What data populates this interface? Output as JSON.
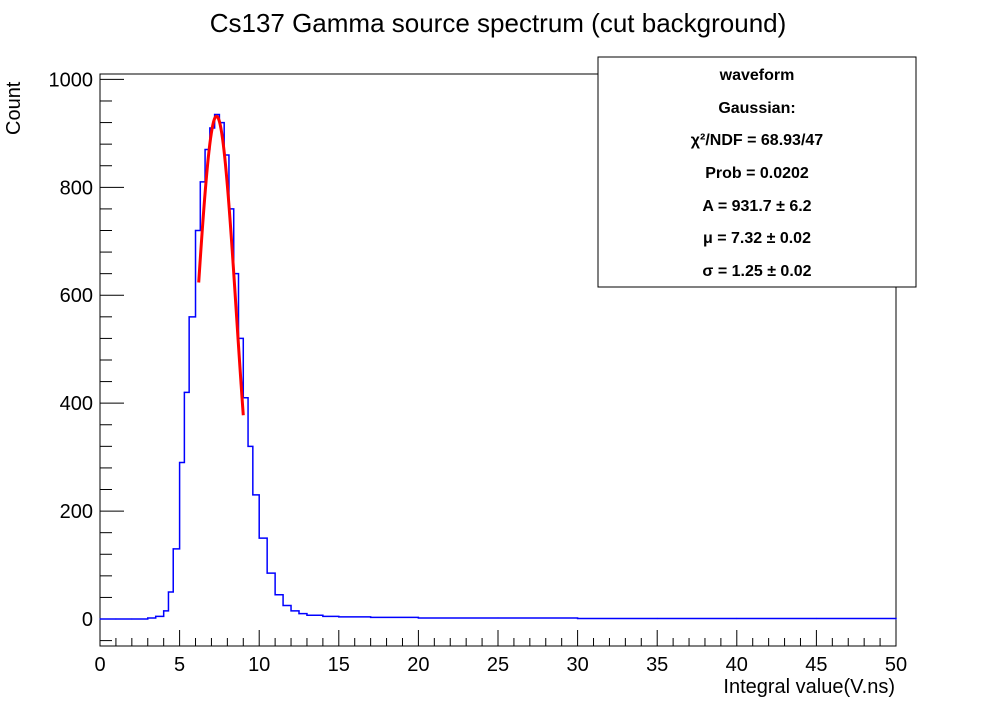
{
  "chart_data": {
    "type": "line",
    "title": "Cs137 Gamma source spectrum (cut background)",
    "xlabel": "Integral value(V.ns)",
    "ylabel": "Count",
    "xlim": [
      0,
      50
    ],
    "ylim": [
      -50,
      1010
    ],
    "x_ticks": [
      0,
      5,
      10,
      15,
      20,
      25,
      30,
      35,
      40,
      45,
      50
    ],
    "y_ticks": [
      0,
      200,
      400,
      600,
      800,
      1000
    ],
    "grid": false,
    "series": [
      {
        "name": "waveform",
        "color": "#0000ff",
        "x": [
          0,
          1,
          2,
          3,
          3.5,
          4,
          4.3,
          4.6,
          5,
          5.3,
          5.6,
          6,
          6.3,
          6.6,
          6.9,
          7.2,
          7.5,
          7.8,
          8.1,
          8.4,
          8.7,
          9,
          9.3,
          9.6,
          10,
          10.5,
          11,
          11.5,
          12,
          12.5,
          13,
          14,
          15,
          17,
          20,
          25,
          30,
          35,
          40,
          45,
          50
        ],
        "y": [
          0,
          0,
          0,
          2,
          5,
          15,
          50,
          130,
          290,
          420,
          560,
          720,
          810,
          870,
          910,
          935,
          920,
          860,
          760,
          640,
          520,
          410,
          320,
          230,
          150,
          85,
          45,
          25,
          15,
          10,
          7,
          5,
          4,
          3,
          2,
          2,
          1,
          1,
          1,
          1,
          0
        ]
      },
      {
        "name": "Gaussian",
        "color": "#ff0000",
        "function": "gaussian",
        "A": 931.7,
        "mu": 7.32,
        "sigma": 1.25,
        "x_range": [
          6.2,
          9.0
        ]
      }
    ]
  },
  "stats_box": {
    "lines": [
      "waveform",
      "Gaussian:",
      "χ²/NDF = 68.93/47",
      "Prob = 0.0202",
      "A = 931.7 ± 6.2",
      "μ = 7.32 ± 0.02",
      "σ = 1.25 ± 0.02"
    ]
  }
}
